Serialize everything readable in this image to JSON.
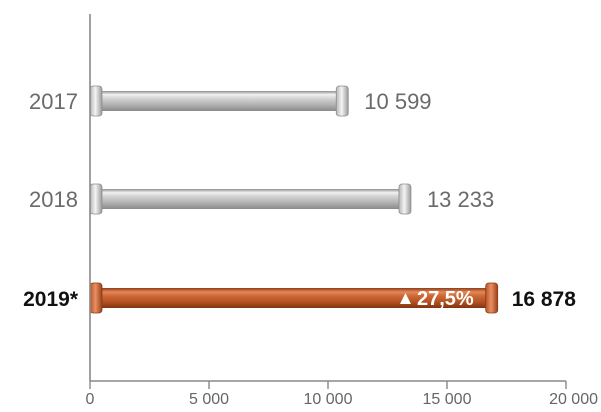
{
  "chart_data": {
    "type": "bar",
    "orientation": "horizontal",
    "categories": [
      "2017",
      "2018",
      "2019*"
    ],
    "values": [
      10599,
      13233,
      16878
    ],
    "value_labels": [
      "10 599",
      "13 233",
      "16 878"
    ],
    "highlight_index": 2,
    "annotation": {
      "category": "2019*",
      "icon": "triangle-up-icon",
      "text": "27,5%"
    },
    "xlim": [
      0,
      20000
    ],
    "xticks": [
      0,
      5000,
      10000,
      15000,
      20000
    ],
    "xtick_labels": [
      "0",
      "5 000",
      "10 000",
      "15 000",
      "20 000"
    ],
    "grid": false,
    "colors": {
      "normal_bar": "#c4c4c4",
      "highlight_bar": "#c8612e",
      "axis": "#888888",
      "text": "#6a6a6a",
      "highlight_text": "#111111"
    }
  }
}
